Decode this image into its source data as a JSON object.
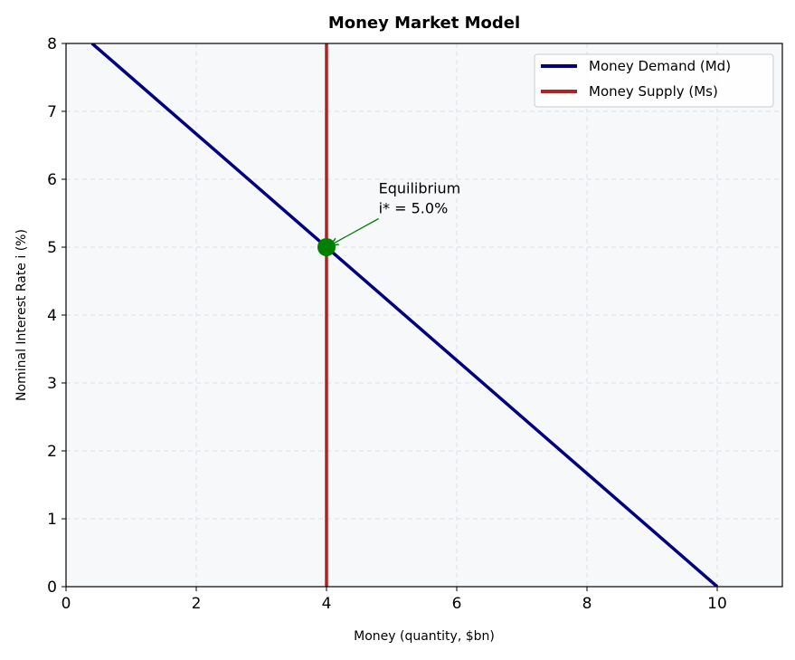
{
  "chart_data": {
    "type": "line",
    "title": "Money Market Model",
    "xlabel": "Money (quantity, $bn)",
    "ylabel": "Nominal Interest Rate i (%)",
    "xlim": [
      0,
      11
    ],
    "ylim": [
      0,
      8
    ],
    "xticks": [
      0,
      2,
      4,
      6,
      8,
      10
    ],
    "yticks": [
      0,
      1,
      2,
      3,
      4,
      5,
      6,
      7,
      8
    ],
    "grid": true,
    "legend": "upper right",
    "series": [
      {
        "name": "Money Demand (Md)",
        "color": "#000080",
        "x": [
          0.4,
          10
        ],
        "values": [
          8,
          0
        ]
      },
      {
        "name": "Money Supply (Ms)",
        "color": "#b22222",
        "x": [
          4,
          4
        ],
        "values": [
          0,
          8
        ]
      }
    ],
    "equilibrium": {
      "x": 4,
      "y": 5,
      "color": "#008000",
      "annotation": {
        "lines": [
          "Equilibrium",
          "i* = 5.0%"
        ],
        "x": 4.8,
        "y": 5.5
      }
    }
  }
}
